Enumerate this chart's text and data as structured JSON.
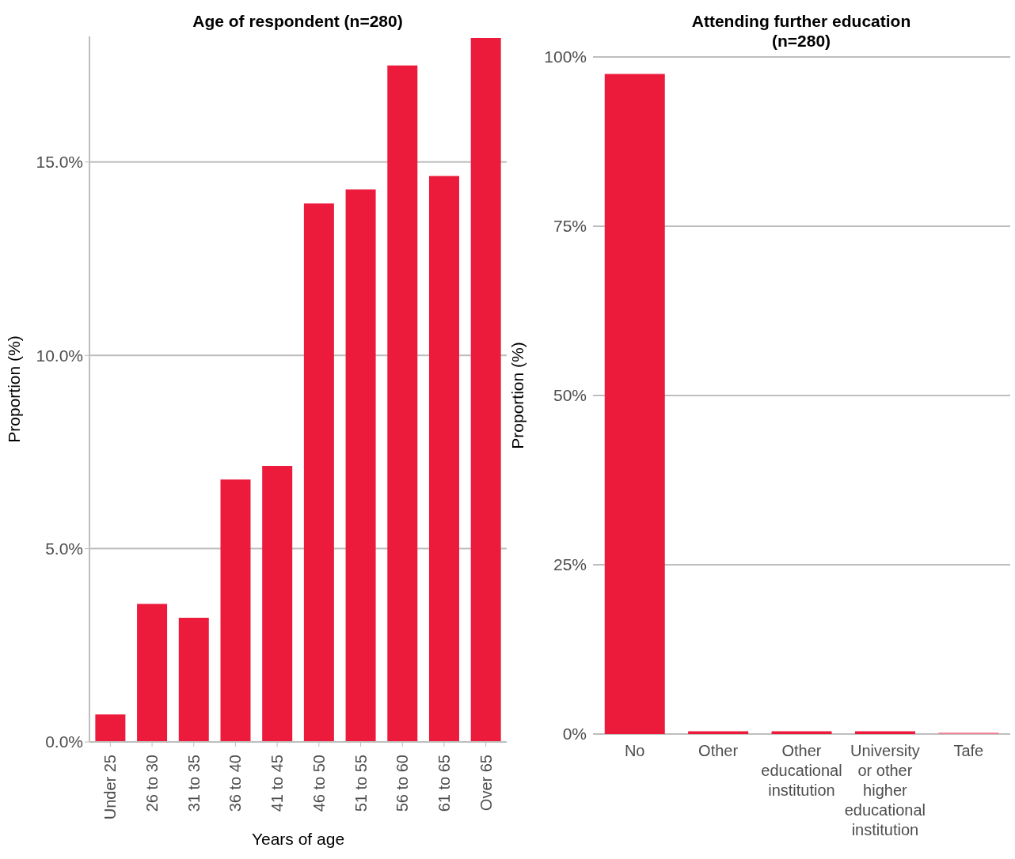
{
  "chart_data": [
    {
      "type": "bar",
      "title": "Age of respondent (n=280)",
      "xlabel": "Years of age",
      "ylabel": "Proportion (%)",
      "categories": [
        "Under 25",
        "26 to 30",
        "31 to 35",
        "36 to 40",
        "41 to 45",
        "46 to 50",
        "51 to 55",
        "56 to 60",
        "61 to 65",
        "Over 65"
      ],
      "values": [
        0.71,
        3.57,
        3.21,
        6.79,
        7.14,
        13.93,
        14.29,
        17.5,
        14.64,
        18.21
      ],
      "color": "#ed1b3b",
      "ylim": [
        0,
        18.25
      ],
      "yticks": [
        {
          "value": 0,
          "label": "0.0%"
        },
        {
          "value": 5,
          "label": "5.0%"
        },
        {
          "value": 10,
          "label": "10.0%"
        },
        {
          "value": 15,
          "label": "15.0%"
        }
      ],
      "grid": "y"
    },
    {
      "type": "bar",
      "title": "Attending further education\n(n=280)",
      "ylabel": "Proportion (%)",
      "categories": [
        "No",
        "Other",
        "Other educational institution",
        "University or other higher educational institution",
        "Tafe"
      ],
      "values": [
        97.5,
        0.4,
        0.4,
        0.4,
        0.2
      ],
      "colors": [
        "#ed1b3b",
        "#ed1b3b",
        "#ed1b3b",
        "#ed1b3b",
        "#f07f90"
      ],
      "ylim": [
        0,
        100
      ],
      "yticks": [
        {
          "value": 0,
          "label": "0%"
        },
        {
          "value": 25,
          "label": "25%"
        },
        {
          "value": 50,
          "label": "50%"
        },
        {
          "value": 75,
          "label": "75%"
        },
        {
          "value": 100,
          "label": "100%"
        }
      ],
      "grid": "y"
    }
  ]
}
